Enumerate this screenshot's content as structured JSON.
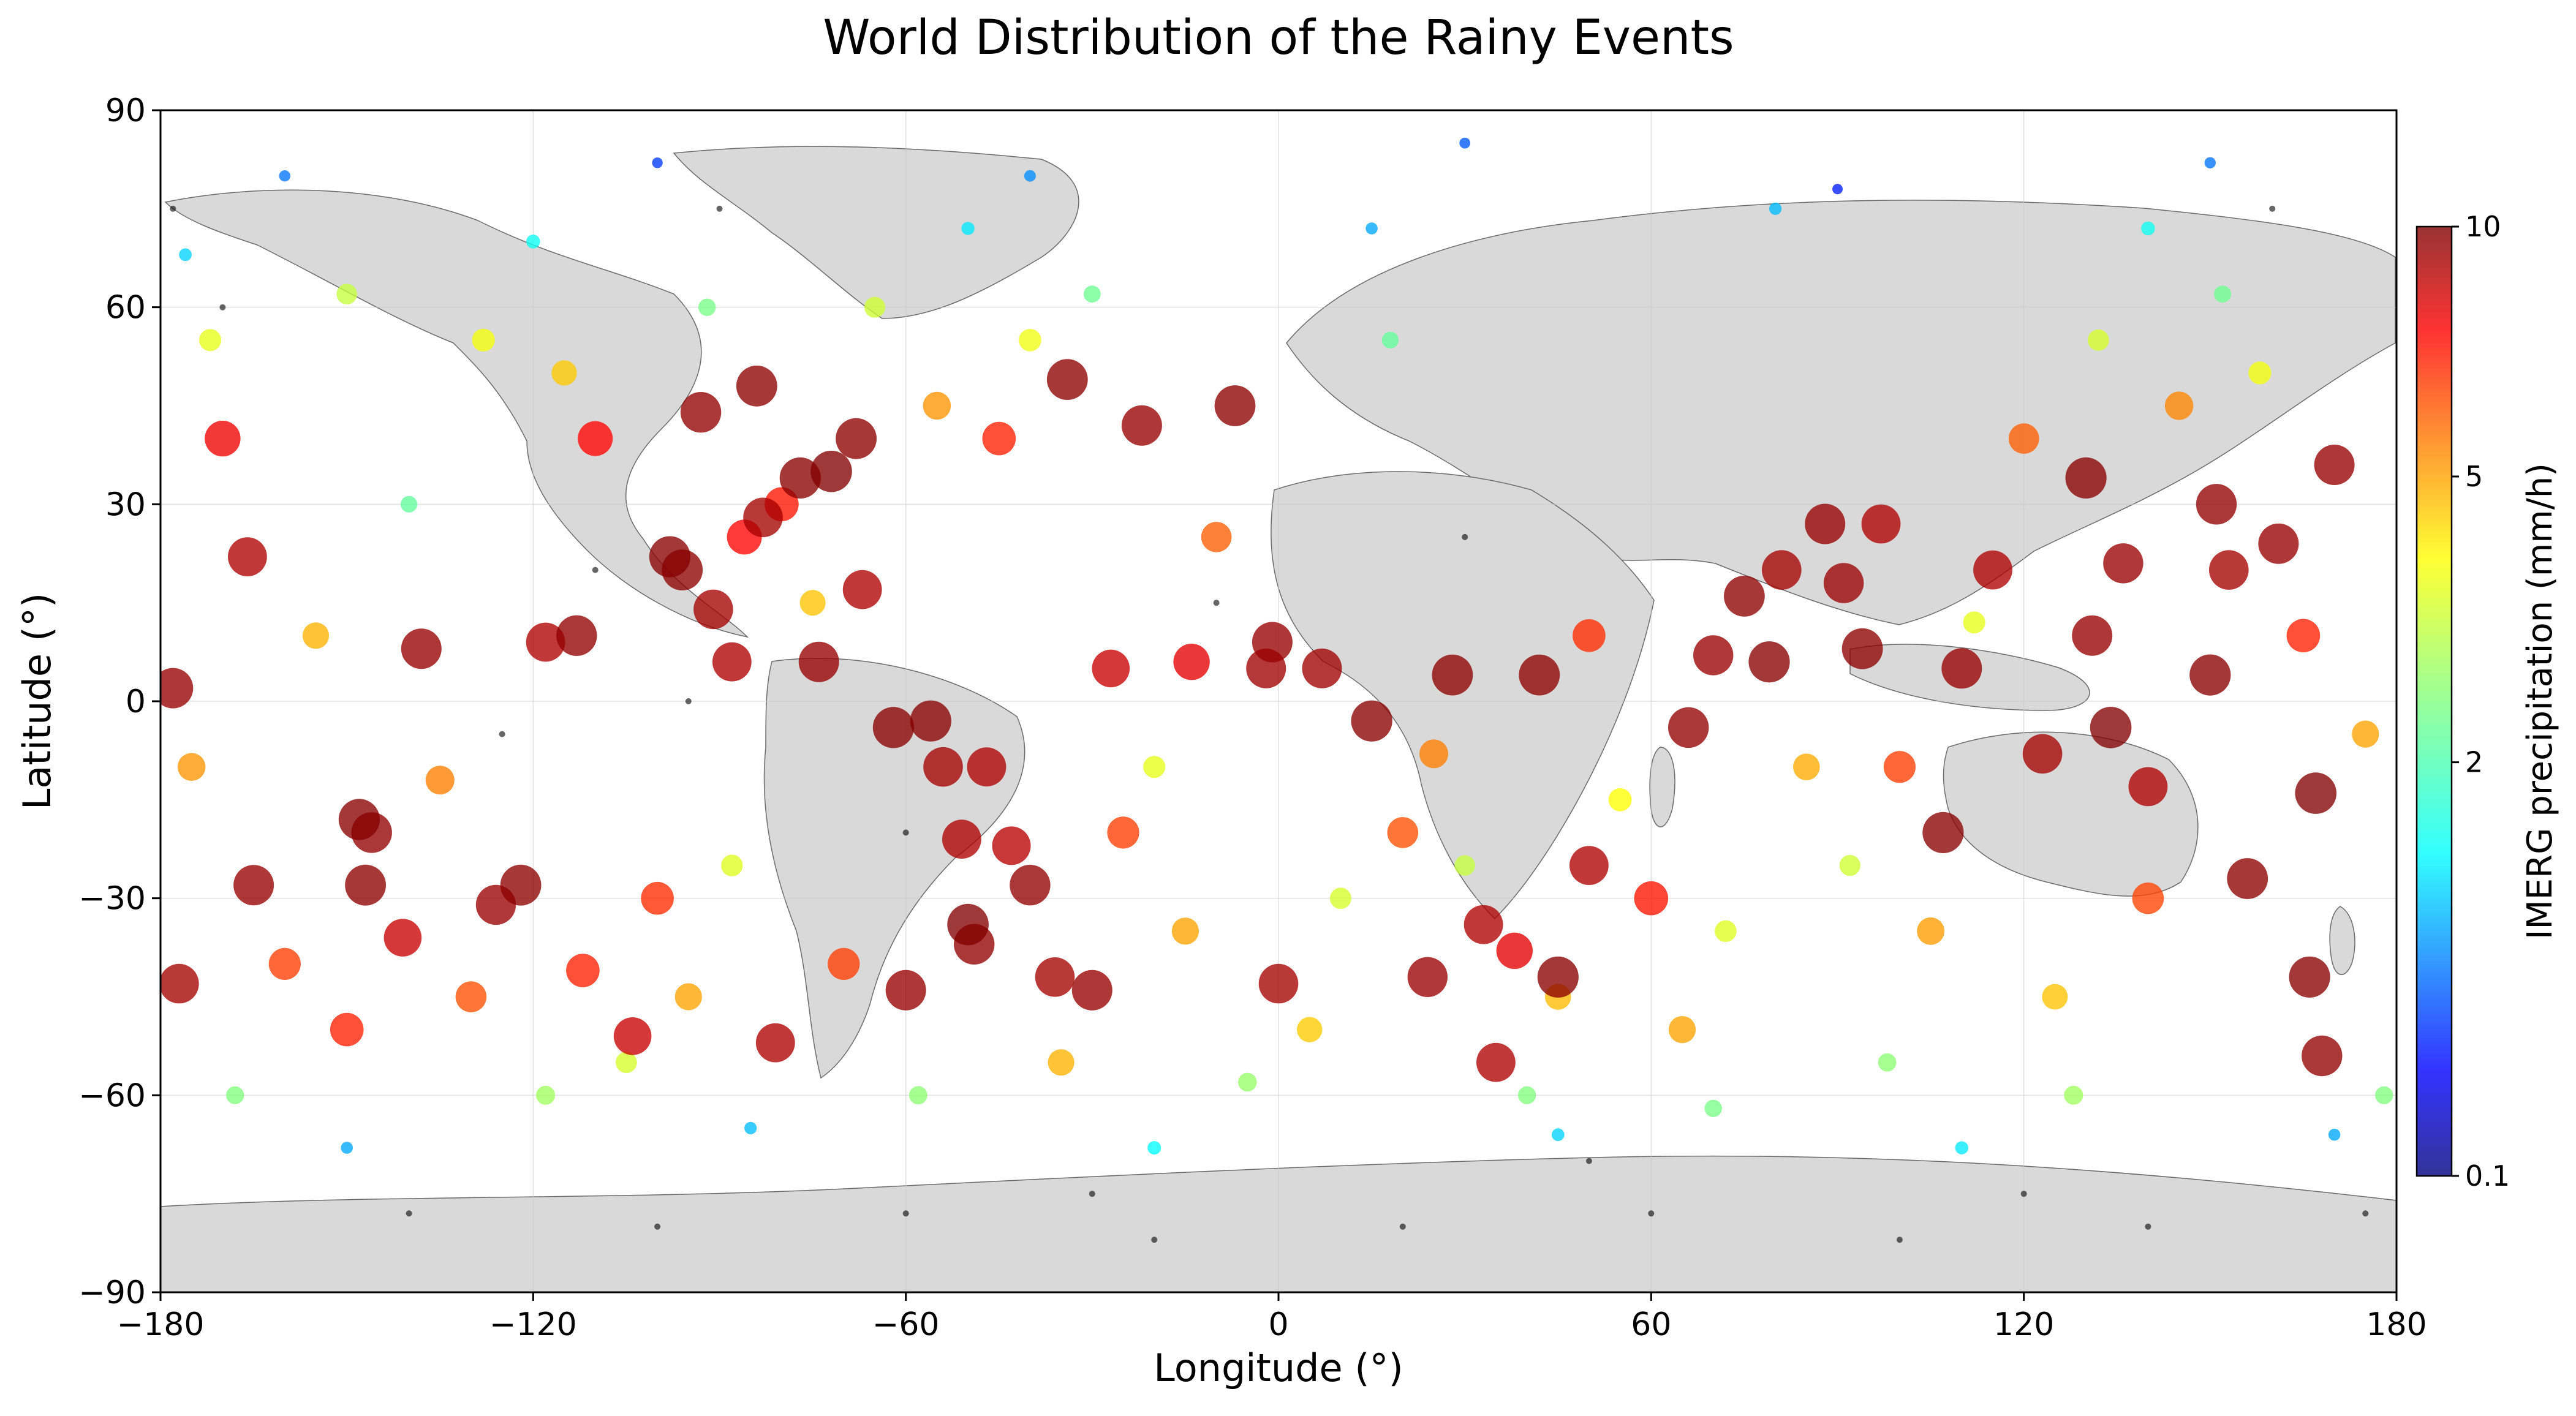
{
  "chart_data": {
    "type": "scatter",
    "title": "World Distribution of the Rainy Events",
    "xlabel": "Longitude (°)",
    "ylabel": "Latitude (°)",
    "xlim": [
      -180,
      180
    ],
    "ylim": [
      -90,
      90
    ],
    "xticks": [
      -180,
      -120,
      -60,
      0,
      60,
      120,
      180
    ],
    "yticks": [
      -90,
      -60,
      -30,
      0,
      30,
      60,
      90
    ],
    "xtick_labels": [
      "−180",
      "−120",
      "−60",
      "0",
      "60",
      "120",
      "180"
    ],
    "ytick_labels": [
      "−90",
      "−60",
      "−30",
      "0",
      "30",
      "60",
      "90"
    ],
    "grid": true,
    "background_map": "world land masses (light gray) with country borders",
    "colorbar": {
      "label": "IMERG precipitation (mm/h)",
      "colormap": "jet",
      "ticks": [
        0.1,
        2,
        5,
        10
      ],
      "tick_labels": [
        "0.1",
        "2",
        "5",
        "10"
      ],
      "range": [
        0.1,
        10
      ]
    },
    "encoding": {
      "color": "IMERG precipitation (mm/h)",
      "size": "increases with precipitation",
      "non_rainy_points_color": "#000000"
    },
    "points_note_rows_are_lon_lat_precip": [
      [
        -178,
        2,
        9.5
      ],
      [
        -177,
        -43,
        9.2
      ],
      [
        -166,
        22,
        9.0
      ],
      [
        -165,
        -28,
        9.5
      ],
      [
        -148,
        -18,
        9.8
      ],
      [
        -147,
        -28,
        9.7
      ],
      [
        -146,
        -20,
        9.6
      ],
      [
        -141,
        -36,
        8.5
      ],
      [
        -138,
        8,
        9.5
      ],
      [
        -126,
        -31,
        9.4
      ],
      [
        -122,
        -28,
        9.7
      ],
      [
        -118,
        9,
        9.0
      ],
      [
        -113,
        10,
        9.6
      ],
      [
        -112,
        -41,
        7.0
      ],
      [
        -104,
        -51,
        8.5
      ],
      [
        -98,
        22,
        9.8
      ],
      [
        -96,
        20,
        9.7
      ],
      [
        -93,
        44,
        9.6
      ],
      [
        -91,
        14,
        9.2
      ],
      [
        -88,
        6,
        9.0
      ],
      [
        -86,
        25,
        7.5
      ],
      [
        -84,
        48,
        9.7
      ],
      [
        -83,
        28,
        9.2
      ],
      [
        -81,
        -52,
        9.0
      ],
      [
        -77,
        34,
        9.8
      ],
      [
        -74,
        6,
        9.5
      ],
      [
        -72,
        35,
        9.9
      ],
      [
        -68,
        40,
        9.7
      ],
      [
        -67,
        17,
        9.0
      ],
      [
        -62,
        -4,
        9.8
      ],
      [
        -60,
        -44,
        9.5
      ],
      [
        -56,
        -3,
        9.8
      ],
      [
        -54,
        -10,
        9.2
      ],
      [
        -51,
        -21,
        9.0
      ],
      [
        -50,
        -34,
        9.9
      ],
      [
        -49,
        -37,
        9.6
      ],
      [
        -47,
        -10,
        9.0
      ],
      [
        -43,
        -22,
        8.8
      ],
      [
        -40,
        -28,
        9.6
      ],
      [
        -36,
        -42,
        9.2
      ],
      [
        -34,
        49,
        9.7
      ],
      [
        -30,
        -44,
        9.5
      ],
      [
        -27,
        5,
        8.5
      ],
      [
        -22,
        42,
        9.5
      ],
      [
        -14,
        6,
        8.0
      ],
      [
        -7,
        45,
        9.7
      ],
      [
        -2,
        5,
        9.3
      ],
      [
        -1,
        9,
        9.5
      ],
      [
        0,
        -43,
        9.2
      ],
      [
        7,
        5,
        9.3
      ],
      [
        15,
        -3,
        9.8
      ],
      [
        24,
        -42,
        9.4
      ],
      [
        28,
        4,
        9.7
      ],
      [
        33,
        -34,
        9.0
      ],
      [
        35,
        -55,
        9.0
      ],
      [
        38,
        -38,
        8.0
      ],
      [
        42,
        4,
        9.7
      ],
      [
        45,
        -42,
        9.8
      ],
      [
        50,
        -25,
        9.0
      ],
      [
        66,
        -4,
        9.6
      ],
      [
        70,
        7,
        9.4
      ],
      [
        75,
        16,
        9.7
      ],
      [
        79,
        6,
        9.8
      ],
      [
        81,
        20,
        9.2
      ],
      [
        88,
        27,
        9.5
      ],
      [
        91,
        18,
        9.4
      ],
      [
        94,
        8,
        9.7
      ],
      [
        97,
        27,
        9.0
      ],
      [
        107,
        -20,
        9.8
      ],
      [
        110,
        5,
        9.5
      ],
      [
        115,
        20,
        9.0
      ],
      [
        123,
        -8,
        9.2
      ],
      [
        130,
        34,
        9.8
      ],
      [
        131,
        10,
        9.5
      ],
      [
        134,
        -4,
        9.9
      ],
      [
        136,
        21,
        9.4
      ],
      [
        140,
        -13,
        9.0
      ],
      [
        150,
        4,
        9.8
      ],
      [
        151,
        30,
        9.6
      ],
      [
        153,
        20,
        9.2
      ],
      [
        156,
        -27,
        9.7
      ],
      [
        161,
        24,
        9.5
      ],
      [
        166,
        -42,
        9.8
      ],
      [
        167,
        -14,
        9.9
      ],
      [
        168,
        -54,
        9.6
      ],
      [
        170,
        36,
        9.5
      ],
      [
        -170,
        40,
        7.8
      ],
      [
        -160,
        -40,
        6.5
      ],
      [
        -150,
        -50,
        7.0
      ],
      [
        -130,
        -45,
        6.2
      ],
      [
        -110,
        40,
        7.5
      ],
      [
        -100,
        -30,
        6.8
      ],
      [
        -80,
        30,
        7.2
      ],
      [
        -70,
        -40,
        6.5
      ],
      [
        -45,
        40,
        7.0
      ],
      [
        -25,
        -20,
        6.5
      ],
      [
        -10,
        25,
        6.0
      ],
      [
        20,
        -20,
        6.2
      ],
      [
        50,
        10,
        6.8
      ],
      [
        60,
        -30,
        7.2
      ],
      [
        100,
        -10,
        6.5
      ],
      [
        120,
        40,
        6.0
      ],
      [
        140,
        -30,
        6.4
      ],
      [
        165,
        10,
        7.0
      ],
      [
        -175,
        -10,
        5.2
      ],
      [
        -155,
        10,
        4.8
      ],
      [
        -135,
        -12,
        5.5
      ],
      [
        -115,
        50,
        4.5
      ],
      [
        -95,
        -45,
        5.0
      ],
      [
        -75,
        15,
        4.6
      ],
      [
        -55,
        45,
        5.2
      ],
      [
        -35,
        -55,
        4.8
      ],
      [
        -15,
        -35,
        5.0
      ],
      [
        5,
        -50,
        4.5
      ],
      [
        25,
        -8,
        5.5
      ],
      [
        45,
        -45,
        4.7
      ],
      [
        65,
        -50,
        5.0
      ],
      [
        85,
        -10,
        4.9
      ],
      [
        105,
        -35,
        5.1
      ],
      [
        125,
        -45,
        4.6
      ],
      [
        145,
        45,
        5.4
      ],
      [
        175,
        -5,
        5.0
      ],
      [
        -172,
        55,
        3.6
      ],
      [
        -150,
        62,
        3.2
      ],
      [
        -128,
        55,
        3.8
      ],
      [
        -105,
        -55,
        3.4
      ],
      [
        -88,
        -25,
        3.5
      ],
      [
        -65,
        60,
        3.3
      ],
      [
        -40,
        55,
        3.7
      ],
      [
        -20,
        -10,
        3.6
      ],
      [
        10,
        -30,
        3.4
      ],
      [
        30,
        -25,
        3.2
      ],
      [
        55,
        -15,
        3.9
      ],
      [
        72,
        -35,
        3.5
      ],
      [
        92,
        -25,
        3.3
      ],
      [
        112,
        12,
        3.6
      ],
      [
        132,
        55,
        3.4
      ],
      [
        158,
        50,
        3.8
      ],
      [
        -168,
        -60,
        2.5
      ],
      [
        -140,
        30,
        2.2
      ],
      [
        -118,
        -60,
        2.8
      ],
      [
        -92,
        60,
        2.4
      ],
      [
        -58,
        -60,
        2.6
      ],
      [
        -30,
        62,
        2.3
      ],
      [
        -5,
        -58,
        2.7
      ],
      [
        18,
        55,
        2.2
      ],
      [
        40,
        -60,
        2.5
      ],
      [
        70,
        -62,
        2.4
      ],
      [
        98,
        -55,
        2.6
      ],
      [
        128,
        -60,
        2.8
      ],
      [
        152,
        62,
        2.3
      ],
      [
        178,
        -60,
        2.5
      ],
      [
        -176,
        68,
        1.2
      ],
      [
        -150,
        -68,
        1.0
      ],
      [
        -120,
        70,
        1.5
      ],
      [
        -85,
        -65,
        1.1
      ],
      [
        -50,
        72,
        1.3
      ],
      [
        -20,
        -68,
        1.4
      ],
      [
        15,
        72,
        1.0
      ],
      [
        45,
        -66,
        1.2
      ],
      [
        80,
        75,
        1.1
      ],
      [
        110,
        -68,
        1.3
      ],
      [
        140,
        72,
        1.5
      ],
      [
        170,
        -66,
        1.0
      ],
      [
        -160,
        80,
        0.8
      ],
      [
        -100,
        82,
        0.6
      ],
      [
        -40,
        80,
        0.9
      ],
      [
        30,
        85,
        0.7
      ],
      [
        90,
        78,
        0.5
      ],
      [
        150,
        82,
        0.8
      ],
      [
        -178,
        75,
        0
      ],
      [
        -140,
        -78,
        0
      ],
      [
        -100,
        -80,
        0
      ],
      [
        -60,
        -78,
        0
      ],
      [
        -20,
        -82,
        0
      ],
      [
        20,
        -80,
        0
      ],
      [
        60,
        -78,
        0
      ],
      [
        100,
        -82,
        0
      ],
      [
        140,
        -80,
        0
      ],
      [
        175,
        -78,
        0
      ],
      [
        -110,
        20,
        0
      ],
      [
        -95,
        0,
        0
      ],
      [
        -60,
        -20,
        0
      ],
      [
        -10,
        15,
        0
      ],
      [
        30,
        25,
        0
      ],
      [
        -125,
        -5,
        0
      ],
      [
        -170,
        60,
        0
      ],
      [
        -90,
        75,
        0
      ],
      [
        -30,
        -75,
        0
      ],
      [
        50,
        -70,
        0
      ],
      [
        120,
        -75,
        0
      ],
      [
        160,
        75,
        0
      ]
    ]
  }
}
